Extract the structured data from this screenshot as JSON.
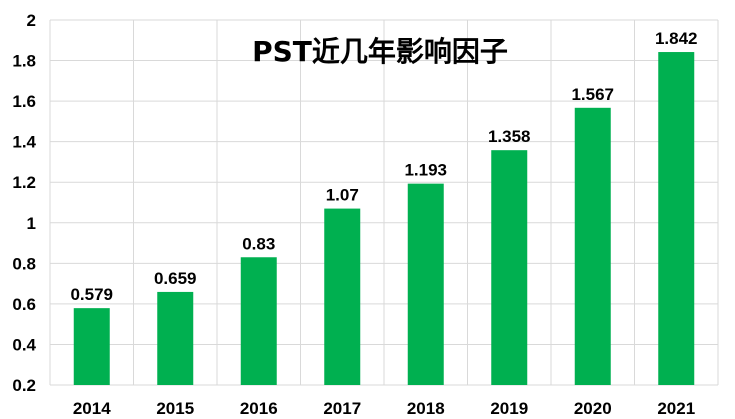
{
  "chart_data": {
    "type": "bar",
    "title": "PST近几年影响因子",
    "categories": [
      "2014",
      "2015",
      "2016",
      "2017",
      "2018",
      "2019",
      "2020",
      "2021"
    ],
    "values": [
      0.579,
      0.659,
      0.83,
      1.07,
      1.193,
      1.358,
      1.567,
      1.842
    ],
    "value_labels": [
      "0.579",
      "0.659",
      "0.83",
      "1.07",
      "1.193",
      "1.358",
      "1.567",
      "1.842"
    ],
    "ylim": [
      0.2,
      2
    ],
    "yticks": [
      0.2,
      0.4,
      0.6,
      0.8,
      1,
      1.2,
      1.4,
      1.6,
      1.8,
      2
    ],
    "ytick_labels": [
      "0.2",
      "0.4",
      "0.6",
      "0.8",
      "1",
      "1.2",
      "1.4",
      "1.6",
      "1.8",
      "2"
    ],
    "grid": true,
    "bar_color": "#00b050",
    "grid_color": "#d9d9d9"
  }
}
